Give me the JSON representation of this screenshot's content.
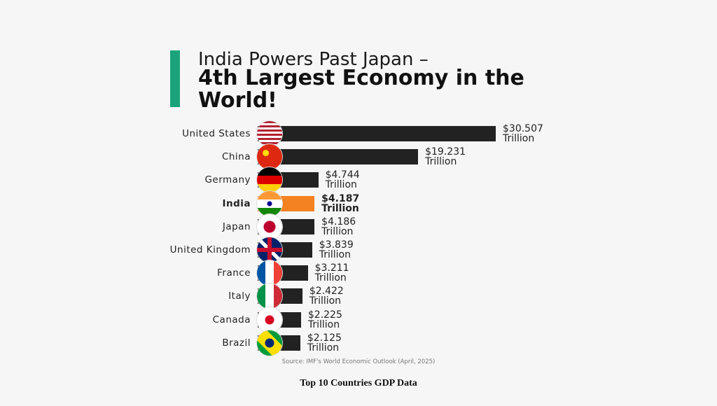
{
  "chart_data": {
    "type": "bar",
    "orientation": "horizontal",
    "title": "India Powers Past Japan –",
    "subtitle": "4th Largest Economy in the World!",
    "categories": [
      "United States",
      "China",
      "Germany",
      "India",
      "Japan",
      "United Kingdom",
      "France",
      "Italy",
      "Canada",
      "Brazil"
    ],
    "values": [
      30.507,
      19.231,
      4.744,
      4.187,
      4.186,
      3.839,
      3.211,
      2.422,
      2.225,
      2.125
    ],
    "value_labels": [
      "$30.507 Trillion",
      "$19.231 Trillion",
      "$4.744 Trillion",
      "$4.187 Trillion",
      "$4.186 Trillion",
      "$3.839 Trillion",
      "$3.211 Trillion",
      "$2.422 Trillion",
      "$2.225 Trillion",
      "$2.125 Trillion"
    ],
    "colors": [
      "#222222",
      "#222222",
      "#222222",
      "#f58220",
      "#222222",
      "#222222",
      "#222222",
      "#222222",
      "#222222",
      "#222222"
    ],
    "source": "Source: IMF's World Economic Outlook (April, 2025)"
  },
  "caption": "Top 10 Countries GDP Data"
}
